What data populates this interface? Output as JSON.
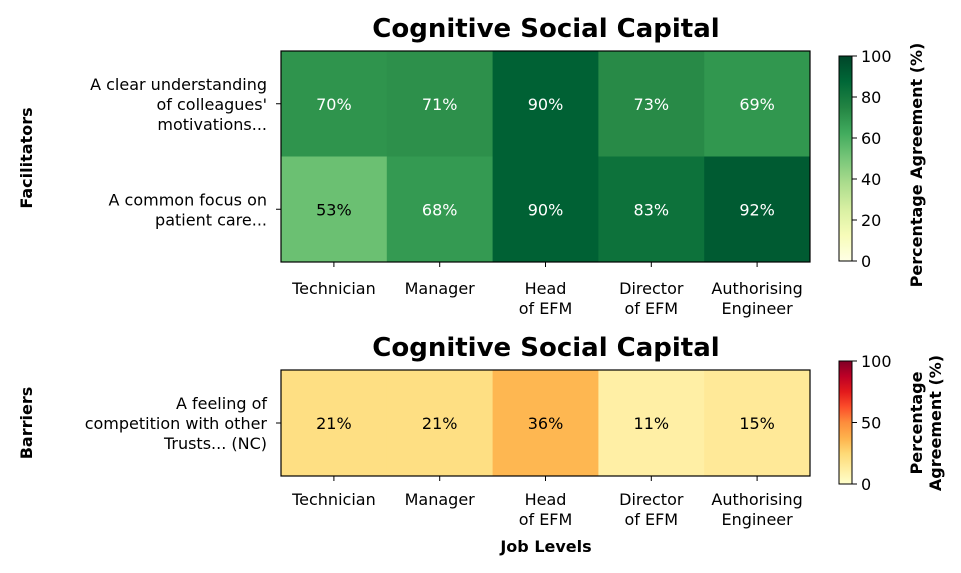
{
  "chart_data": [
    {
      "type": "heatmap",
      "title": "Cognitive Social Capital",
      "group_label": "Facilitators",
      "xlabel": "",
      "categories": [
        "Technician",
        "Manager",
        "Head of EFM",
        "Director of EFM",
        "Authorising Engineer"
      ],
      "rows": [
        {
          "label": "A clear understanding of colleagues' motivations...",
          "values": [
            70,
            71,
            90,
            73,
            69
          ]
        },
        {
          "label": "A common focus on patient care...",
          "values": [
            53,
            68,
            90,
            83,
            92
          ]
        }
      ],
      "value_suffix": "%",
      "colorbar": {
        "label": "Percentage Agreement (%)",
        "colormap": "Greens",
        "range": [
          0,
          100
        ],
        "ticks": [
          "0",
          "20",
          "40",
          "60",
          "80",
          "100"
        ]
      }
    },
    {
      "type": "heatmap",
      "title": "Cognitive Social Capital",
      "group_label": "Barriers",
      "xlabel": "Job Levels",
      "categories": [
        "Technician",
        "Manager",
        "Head of EFM",
        "Director of EFM",
        "Authorising Engineer"
      ],
      "rows": [
        {
          "label": "A feeling of competition with other Trusts... (NC)",
          "values": [
            21,
            21,
            36,
            11,
            15
          ]
        }
      ],
      "value_suffix": "%",
      "colorbar": {
        "label": "Percentage Agreement (%)",
        "colormap": "YlOrRd",
        "range": [
          0,
          100
        ],
        "ticks": [
          "0",
          "50",
          "100"
        ]
      }
    }
  ]
}
